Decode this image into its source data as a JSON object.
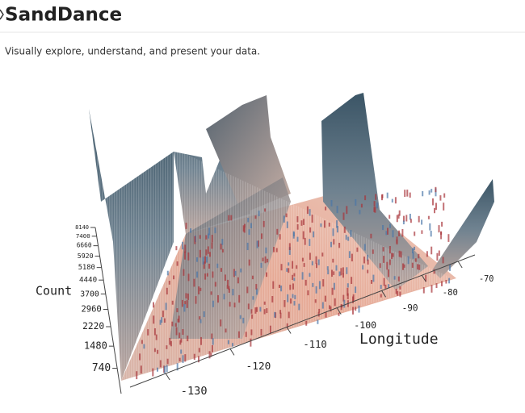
{
  "header": {
    "title": "SandDance",
    "subtitle": "Visually explore, understand, and present your data."
  },
  "chart_data": {
    "type": "bar3d",
    "y_label": "Count",
    "x_label": "Longitude",
    "ylim": [
      0,
      8140
    ],
    "yticks": [
      740,
      1480,
      2220,
      2960,
      3700,
      4440,
      5180,
      5920,
      6660,
      7400,
      8140
    ],
    "xlim": [
      -135,
      -65
    ],
    "xticks": [
      -130,
      -120,
      -110,
      -100,
      -90,
      -80,
      -70
    ]
  }
}
